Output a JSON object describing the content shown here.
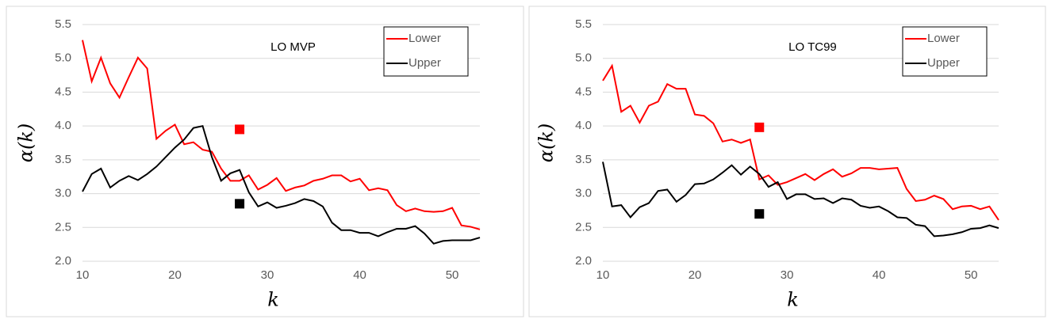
{
  "chart_data": [
    {
      "type": "line",
      "annotation": "LO MVP",
      "xlabel": "k",
      "ylabel": "α(k)",
      "x": [
        10,
        11,
        12,
        13,
        14,
        15,
        16,
        17,
        18,
        19,
        20,
        21,
        22,
        23,
        24,
        25,
        26,
        27,
        28,
        29,
        30,
        31,
        32,
        33,
        34,
        35,
        36,
        37,
        38,
        39,
        40,
        41,
        42,
        43,
        44,
        45,
        46,
        47,
        48,
        49,
        50,
        51,
        52,
        53
      ],
      "series": [
        {
          "name": "Lower",
          "color": "#ff0000",
          "values": [
            5.27,
            4.66,
            5.01,
            4.63,
            4.42,
            4.72,
            5.01,
            4.85,
            3.81,
            3.93,
            4.02,
            3.73,
            3.76,
            3.65,
            3.62,
            3.37,
            3.19,
            3.19,
            3.27,
            3.06,
            3.13,
            3.23,
            3.04,
            3.09,
            3.12,
            3.19,
            3.22,
            3.27,
            3.27,
            3.18,
            3.22,
            3.05,
            3.08,
            3.05,
            2.83,
            2.74,
            2.78,
            2.74,
            2.73,
            2.74,
            2.79,
            2.53,
            2.51,
            2.47
          ]
        },
        {
          "name": "Upper",
          "color": "#000000",
          "values": [
            3.03,
            3.29,
            3.37,
            3.09,
            3.19,
            3.26,
            3.2,
            3.29,
            3.4,
            3.54,
            3.68,
            3.8,
            3.97,
            4.0,
            3.54,
            3.19,
            3.3,
            3.35,
            3.02,
            2.81,
            2.87,
            2.79,
            2.82,
            2.86,
            2.92,
            2.89,
            2.81,
            2.57,
            2.46,
            2.46,
            2.42,
            2.42,
            2.37,
            2.43,
            2.48,
            2.48,
            2.52,
            2.41,
            2.26,
            2.3,
            2.31,
            2.31,
            2.31,
            2.35
          ]
        }
      ],
      "markers": [
        {
          "x": 27,
          "y": 3.95,
          "color": "#ff0000"
        },
        {
          "x": 27,
          "y": 2.85,
          "color": "#000000"
        }
      ],
      "xlim": [
        10,
        53
      ],
      "xticks": [
        10,
        20,
        30,
        40,
        50
      ],
      "ylim": [
        2,
        5.5
      ],
      "yticks": [
        {
          "value": 2,
          "label": "2.0"
        },
        2.5,
        {
          "value": 3,
          "label": "3.0"
        },
        3.5,
        {
          "value": 4,
          "label": "4.0"
        },
        4.5,
        {
          "value": 5,
          "label": "5.0"
        },
        5.5
      ],
      "grid": true,
      "legend": "upper right"
    },
    {
      "type": "line",
      "annotation": "LO TC99",
      "xlabel": "k",
      "ylabel": "α(k)",
      "x": [
        10,
        11,
        12,
        13,
        14,
        15,
        16,
        17,
        18,
        19,
        20,
        21,
        22,
        23,
        24,
        25,
        26,
        27,
        28,
        29,
        30,
        31,
        32,
        33,
        34,
        35,
        36,
        37,
        38,
        39,
        40,
        41,
        42,
        43,
        44,
        45,
        46,
        47,
        48,
        49,
        50,
        51,
        52,
        53
      ],
      "series": [
        {
          "name": "Lower",
          "color": "#ff0000",
          "values": [
            4.67,
            4.89,
            4.21,
            4.3,
            4.05,
            4.3,
            4.36,
            4.62,
            4.55,
            4.55,
            4.17,
            4.15,
            4.04,
            3.77,
            3.8,
            3.75,
            3.8,
            3.21,
            3.27,
            3.13,
            3.17,
            3.23,
            3.29,
            3.2,
            3.29,
            3.36,
            3.25,
            3.3,
            3.38,
            3.38,
            3.36,
            3.37,
            3.38,
            3.07,
            2.89,
            2.91,
            2.97,
            2.92,
            2.77,
            2.81,
            2.82,
            2.77,
            2.81,
            2.61
          ]
        },
        {
          "name": "Upper",
          "color": "#000000",
          "values": [
            3.47,
            2.81,
            2.83,
            2.65,
            2.8,
            2.86,
            3.04,
            3.06,
            2.88,
            2.98,
            3.14,
            3.15,
            3.21,
            3.31,
            3.42,
            3.28,
            3.4,
            3.29,
            3.1,
            3.17,
            2.92,
            2.99,
            2.99,
            2.92,
            2.93,
            2.86,
            2.93,
            2.91,
            2.82,
            2.79,
            2.81,
            2.74,
            2.65,
            2.64,
            2.54,
            2.52,
            2.37,
            2.38,
            2.4,
            2.43,
            2.48,
            2.49,
            2.53,
            2.49
          ]
        }
      ],
      "markers": [
        {
          "x": 27,
          "y": 3.98,
          "color": "#ff0000"
        },
        {
          "x": 27,
          "y": 2.7,
          "color": "#000000"
        }
      ],
      "xlim": [
        10,
        53
      ],
      "xticks": [
        10,
        20,
        30,
        40,
        50
      ],
      "ylim": [
        2,
        5.5
      ],
      "yticks": [
        {
          "value": 2,
          "label": "2.0"
        },
        2.5,
        {
          "value": 3,
          "label": "3.0"
        },
        3.5,
        {
          "value": 4,
          "label": "4.0"
        },
        4.5,
        {
          "value": 5,
          "label": "5.0"
        },
        5.5
      ],
      "grid": true,
      "legend": "upper right"
    }
  ]
}
